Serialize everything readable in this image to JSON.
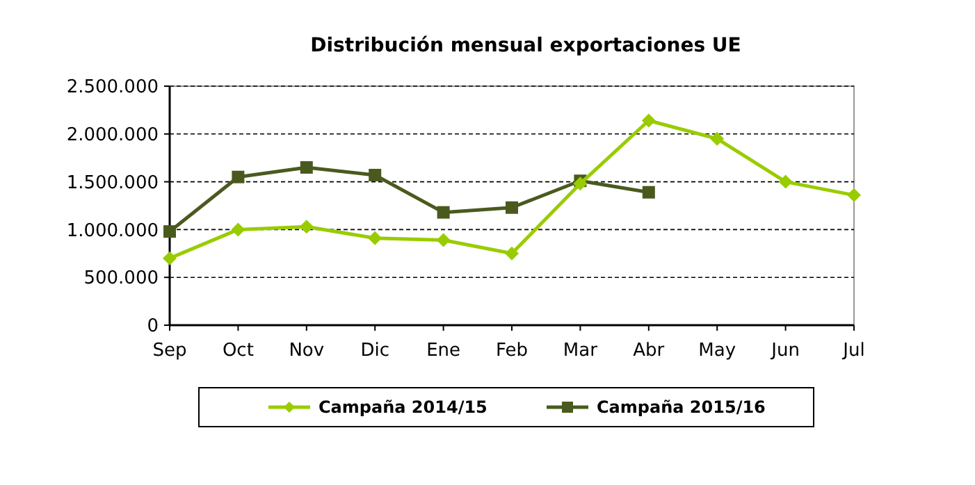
{
  "chart_data": {
    "type": "line",
    "title": "Distribución mensual exportaciones UE",
    "categories": [
      "Sep",
      "Oct",
      "Nov",
      "Dic",
      "Ene",
      "Feb",
      "Mar",
      "Abr",
      "May",
      "Jun",
      "Jul"
    ],
    "series": [
      {
        "name": "Campaña 2014/15",
        "color": "#99cc00",
        "marker": "diamond",
        "values": [
          700000,
          1000000,
          1030000,
          910000,
          890000,
          750000,
          1480000,
          2140000,
          1950000,
          1500000,
          1360000
        ]
      },
      {
        "name": "Campaña 2015/16",
        "color": "#4a5a1e",
        "marker": "square",
        "values": [
          980000,
          1550000,
          1650000,
          1570000,
          1180000,
          1230000,
          1510000,
          1390000,
          null,
          null,
          null
        ]
      }
    ],
    "ylim": [
      0,
      2500000
    ],
    "yticks": [
      0,
      {
        "value": 500000,
        "label": "500.000"
      },
      {
        "value": 1000000,
        "label": "1.000.000"
      },
      {
        "value": 1500000,
        "label": "1.500.000"
      },
      {
        "value": 2000000,
        "label": "2.000.000"
      },
      {
        "value": 2500000,
        "label": "2.500.000"
      }
    ],
    "grid": "y",
    "legend": "bottom",
    "line_style": "solid"
  }
}
